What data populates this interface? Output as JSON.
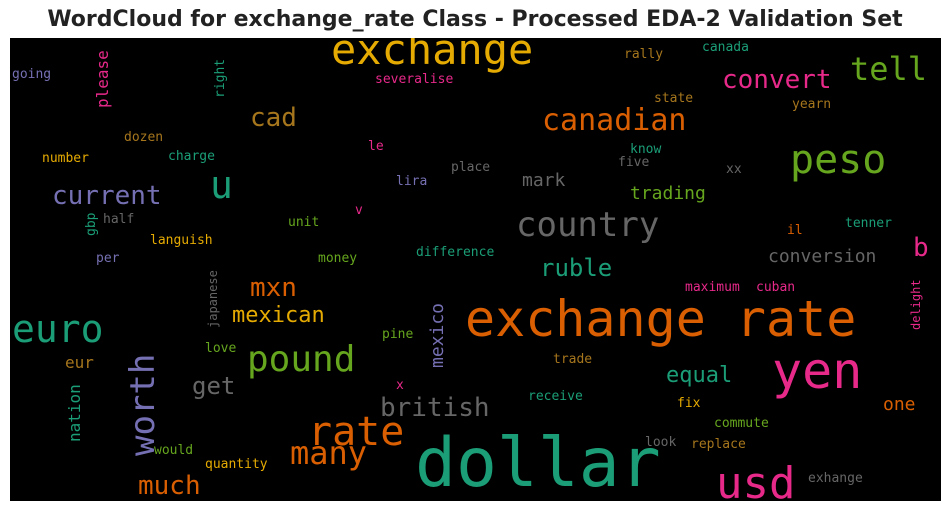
{
  "chart_data": {
    "type": "wordcloud",
    "title": "WordCloud for exchange_rate Class - Processed EDA-2 Validation Set",
    "background": "#000000",
    "colors": {
      "green": "#1b9e77",
      "orange": "#d95f02",
      "purple": "#7570b3",
      "pink": "#e7298a",
      "lime": "#66a61e",
      "gold": "#e6ab02",
      "brown": "#a6761d",
      "gray": "#666666"
    },
    "words": [
      {
        "text": "dollar",
        "color": "green"
      },
      {
        "text": "exchange rate",
        "color": "orange"
      },
      {
        "text": "exchange",
        "color": "gold"
      },
      {
        "text": "yen",
        "color": "pink"
      },
      {
        "text": "peso",
        "color": "lime"
      },
      {
        "text": "euro",
        "color": "green"
      },
      {
        "text": "usd",
        "color": "pink"
      },
      {
        "text": "country",
        "color": "gray"
      },
      {
        "text": "rate",
        "color": "orange"
      },
      {
        "text": "pound",
        "color": "lime"
      },
      {
        "text": "many",
        "color": "orange"
      },
      {
        "text": "canadian",
        "color": "orange"
      },
      {
        "text": "u",
        "color": "green"
      },
      {
        "text": "worth",
        "color": "purple"
      },
      {
        "text": "tell",
        "color": "lime"
      },
      {
        "text": "convert",
        "color": "pink"
      },
      {
        "text": "british",
        "color": "gray"
      },
      {
        "text": "much",
        "color": "orange"
      },
      {
        "text": "current",
        "color": "purple"
      },
      {
        "text": "mxn",
        "color": "orange"
      },
      {
        "text": "cad",
        "color": "brown"
      },
      {
        "text": "mexican",
        "color": "gold"
      },
      {
        "text": "ruble",
        "color": "green"
      },
      {
        "text": "get",
        "color": "gray"
      },
      {
        "text": "equal",
        "color": "green"
      },
      {
        "text": "b",
        "color": "pink"
      },
      {
        "text": "conversion",
        "color": "gray"
      },
      {
        "text": "mark",
        "color": "gray"
      },
      {
        "text": "trading",
        "color": "lime"
      },
      {
        "text": "mexico",
        "color": "purple"
      },
      {
        "text": "please",
        "color": "pink"
      },
      {
        "text": "one",
        "color": "orange"
      },
      {
        "text": "nation",
        "color": "green"
      },
      {
        "text": "eur",
        "color": "brown"
      },
      {
        "text": "going",
        "color": "purple"
      },
      {
        "text": "severalise",
        "color": "pink"
      },
      {
        "text": "canada",
        "color": "green"
      },
      {
        "text": "rally",
        "color": "brown"
      },
      {
        "text": "right",
        "color": "green"
      },
      {
        "text": "state",
        "color": "brown"
      },
      {
        "text": "yearn",
        "color": "brown"
      },
      {
        "text": "dozen",
        "color": "brown"
      },
      {
        "text": "le",
        "color": "pink"
      },
      {
        "text": "know",
        "color": "green"
      },
      {
        "text": "number",
        "color": "gold"
      },
      {
        "text": "charge",
        "color": "green"
      },
      {
        "text": "place",
        "color": "gray"
      },
      {
        "text": "five",
        "color": "gray"
      },
      {
        "text": "xx",
        "color": "gray"
      },
      {
        "text": "lira",
        "color": "purple"
      },
      {
        "text": "half",
        "color": "gray"
      },
      {
        "text": "gbp",
        "color": "green"
      },
      {
        "text": "v",
        "color": "pink"
      },
      {
        "text": "unit",
        "color": "lime"
      },
      {
        "text": "tenner",
        "color": "green"
      },
      {
        "text": "il",
        "color": "orange"
      },
      {
        "text": "languish",
        "color": "gold"
      },
      {
        "text": "per",
        "color": "purple"
      },
      {
        "text": "money",
        "color": "lime"
      },
      {
        "text": "difference",
        "color": "green"
      },
      {
        "text": "japanese",
        "color": "gray"
      },
      {
        "text": "maximum",
        "color": "pink"
      },
      {
        "text": "cuban",
        "color": "pink"
      },
      {
        "text": "delight",
        "color": "pink"
      },
      {
        "text": "love",
        "color": "lime"
      },
      {
        "text": "pine",
        "color": "lime"
      },
      {
        "text": "trade",
        "color": "brown"
      },
      {
        "text": "x",
        "color": "pink"
      },
      {
        "text": "receive",
        "color": "green"
      },
      {
        "text": "fix",
        "color": "gold"
      },
      {
        "text": "would",
        "color": "lime"
      },
      {
        "text": "look",
        "color": "gray"
      },
      {
        "text": "commute",
        "color": "lime"
      },
      {
        "text": "replace",
        "color": "brown"
      },
      {
        "text": "quantity",
        "color": "gold"
      },
      {
        "text": "exhange",
        "color": "gray"
      }
    ]
  }
}
